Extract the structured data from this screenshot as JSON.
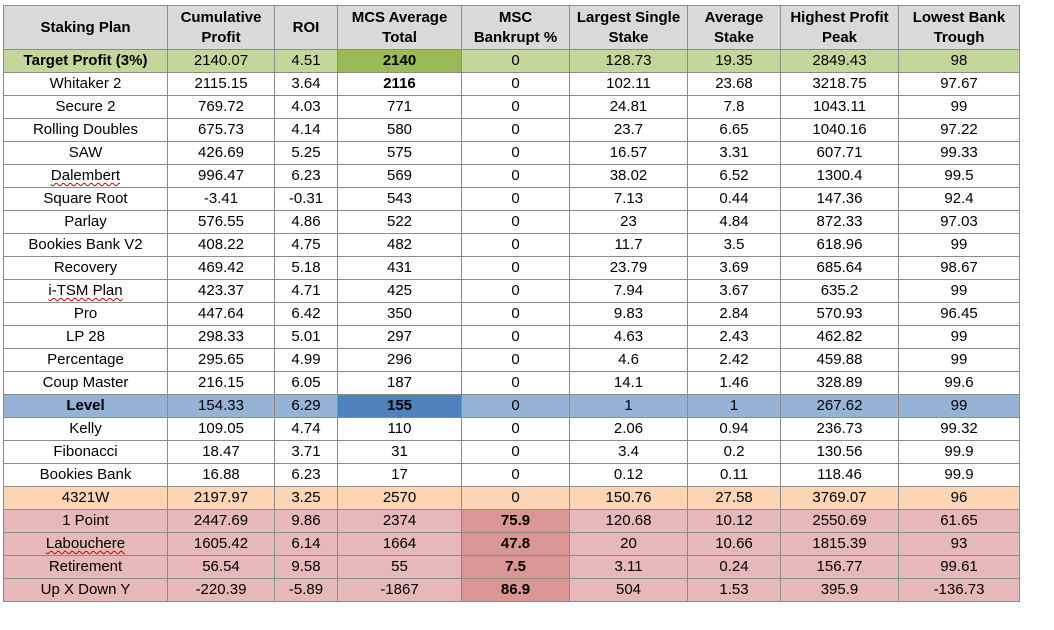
{
  "colors": {
    "header": "#d9d9d9",
    "target": "#c4d79b",
    "target_mcs": "#9bbb59",
    "level": "#95b3d7",
    "level_mcs": "#4f81bd",
    "w4321": "#fcd5b4",
    "bankrupt": "#e6b8b7",
    "bankrupt_msc": "#da9694",
    "white": "#ffffff"
  },
  "columns": [
    "Staking Plan",
    "Cumulative Profit",
    "ROI",
    "MCS Average Total",
    "MSC Bankrupt %",
    "Largest Single Stake",
    "Average Stake",
    "Highest Profit Peak",
    "Lowest Bank Trough"
  ],
  "rows": [
    {
      "style": "target",
      "bold_name": true,
      "wavy": false,
      "cells": [
        "Target Profit (3%)",
        "2140.07",
        "4.51",
        "2140",
        "0",
        "128.73",
        "19.35",
        "2849.43",
        "98"
      ]
    },
    {
      "style": "white",
      "bold_name": false,
      "wavy": false,
      "cells": [
        "Whitaker 2",
        "2115.15",
        "3.64",
        "2116",
        "0",
        "102.11",
        "23.68",
        "3218.75",
        "97.67"
      ]
    },
    {
      "style": "white",
      "bold_name": false,
      "wavy": false,
      "cells": [
        "Secure 2",
        "769.72",
        "4.03",
        "771",
        "0",
        "24.81",
        "7.8",
        "1043.11",
        "99"
      ]
    },
    {
      "style": "white",
      "bold_name": false,
      "wavy": false,
      "cells": [
        "Rolling Doubles",
        "675.73",
        "4.14",
        "580",
        "0",
        "23.7",
        "6.65",
        "1040.16",
        "97.22"
      ]
    },
    {
      "style": "white",
      "bold_name": false,
      "wavy": false,
      "cells": [
        "SAW",
        "426.69",
        "5.25",
        "575",
        "0",
        "16.57",
        "3.31",
        "607.71",
        "99.33"
      ]
    },
    {
      "style": "white",
      "bold_name": false,
      "wavy": true,
      "cells": [
        "Dalembert",
        "996.47",
        "6.23",
        "569",
        "0",
        "38.02",
        "6.52",
        "1300.4",
        "99.5"
      ]
    },
    {
      "style": "white",
      "bold_name": false,
      "wavy": false,
      "cells": [
        "Square Root",
        "-3.41",
        "-0.31",
        "543",
        "0",
        "7.13",
        "0.44",
        "147.36",
        "92.4"
      ]
    },
    {
      "style": "white",
      "bold_name": false,
      "wavy": false,
      "cells": [
        "Parlay",
        "576.55",
        "4.86",
        "522",
        "0",
        "23",
        "4.84",
        "872.33",
        "97.03"
      ]
    },
    {
      "style": "white",
      "bold_name": false,
      "wavy": false,
      "cells": [
        "Bookies Bank V2",
        "408.22",
        "4.75",
        "482",
        "0",
        "11.7",
        "3.5",
        "618.96",
        "99"
      ]
    },
    {
      "style": "white",
      "bold_name": false,
      "wavy": false,
      "cells": [
        "Recovery",
        "469.42",
        "5.18",
        "431",
        "0",
        "23.79",
        "3.69",
        "685.64",
        "98.67"
      ]
    },
    {
      "style": "white",
      "bold_name": false,
      "wavy": true,
      "cells": [
        "i-TSM Plan",
        "423.37",
        "4.71",
        "425",
        "0",
        "7.94",
        "3.67",
        "635.2",
        "99"
      ]
    },
    {
      "style": "white",
      "bold_name": false,
      "wavy": false,
      "cells": [
        "Pro",
        "447.64",
        "6.42",
        "350",
        "0",
        "9.83",
        "2.84",
        "570.93",
        "96.45"
      ]
    },
    {
      "style": "white",
      "bold_name": false,
      "wavy": false,
      "cells": [
        "LP 28",
        "298.33",
        "5.01",
        "297",
        "0",
        "4.63",
        "2.43",
        "462.82",
        "99"
      ]
    },
    {
      "style": "white",
      "bold_name": false,
      "wavy": false,
      "cells": [
        "Percentage",
        "295.65",
        "4.99",
        "296",
        "0",
        "4.6",
        "2.42",
        "459.88",
        "99"
      ]
    },
    {
      "style": "white",
      "bold_name": false,
      "wavy": false,
      "cells": [
        "Coup Master",
        "216.15",
        "6.05",
        "187",
        "0",
        "14.1",
        "1.46",
        "328.89",
        "99.6"
      ]
    },
    {
      "style": "level",
      "bold_name": true,
      "wavy": false,
      "cells": [
        "Level",
        "154.33",
        "6.29",
        "155",
        "0",
        "1",
        "1",
        "267.62",
        "99"
      ]
    },
    {
      "style": "white",
      "bold_name": false,
      "wavy": false,
      "cells": [
        "Kelly",
        "109.05",
        "4.74",
        "110",
        "0",
        "2.06",
        "0.94",
        "236.73",
        "99.32"
      ]
    },
    {
      "style": "white",
      "bold_name": false,
      "wavy": false,
      "cells": [
        "Fibonacci",
        "18.47",
        "3.71",
        "31",
        "0",
        "3.4",
        "0.2",
        "130.56",
        "99.9"
      ]
    },
    {
      "style": "white",
      "bold_name": false,
      "wavy": false,
      "cells": [
        "Bookies Bank",
        "16.88",
        "6.23",
        "17",
        "0",
        "0.12",
        "0.11",
        "118.46",
        "99.9"
      ]
    },
    {
      "style": "w4321",
      "bold_name": false,
      "wavy": false,
      "cells": [
        "4321W",
        "2197.97",
        "3.25",
        "2570",
        "0",
        "150.76",
        "27.58",
        "3769.07",
        "96"
      ]
    },
    {
      "style": "bankrupt",
      "bold_name": false,
      "wavy": false,
      "cells": [
        "1 Point",
        "2447.69",
        "9.86",
        "2374",
        "75.9",
        "120.68",
        "10.12",
        "2550.69",
        "61.65"
      ]
    },
    {
      "style": "bankrupt",
      "bold_name": false,
      "wavy": true,
      "cells": [
        "Labouchere",
        "1605.42",
        "6.14",
        "1664",
        "47.8",
        "20",
        "10.66",
        "1815.39",
        "93"
      ]
    },
    {
      "style": "bankrupt",
      "bold_name": false,
      "wavy": false,
      "cells": [
        "Retirement",
        "56.54",
        "9.58",
        "55",
        "7.5",
        "3.11",
        "0.24",
        "156.77",
        "99.61"
      ]
    },
    {
      "style": "bankrupt",
      "bold_name": false,
      "wavy": false,
      "cells": [
        "Up X Down Y",
        "-220.39",
        "-5.89",
        "-1867",
        "86.9",
        "504",
        "1.53",
        "395.9",
        "-136.73"
      ]
    }
  ]
}
